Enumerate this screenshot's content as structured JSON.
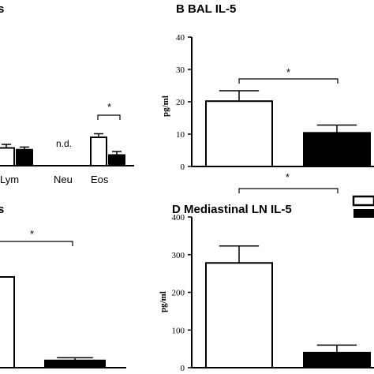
{
  "chart_data": [
    {
      "id": "A",
      "type": "bar",
      "title": "s",
      "categories": [
        "Lym",
        "Neu",
        "Eos"
      ],
      "series": [
        {
          "values": [
            10,
            null,
            16
          ],
          "errors": [
            2,
            null,
            2
          ],
          "color": "#ffffff"
        },
        {
          "values": [
            9,
            null,
            6
          ],
          "errors": [
            1.5,
            null,
            2
          ],
          "color": "#000000"
        }
      ],
      "annotations": [
        {
          "category": "Neu",
          "text": "n.d."
        },
        {
          "category": "Eos",
          "text": "*"
        }
      ]
    },
    {
      "id": "B",
      "type": "bar",
      "title": "B  BAL IL-5",
      "ylabel": "pg/ml",
      "ylim": [
        0,
        40
      ],
      "yticks": [
        0,
        10,
        20,
        30,
        40
      ],
      "values": [
        20.2,
        10.4
      ],
      "errors": [
        3.2,
        2.4
      ],
      "colors": [
        "#ffffff",
        "#000000"
      ],
      "significance": "*"
    },
    {
      "id": "C",
      "type": "bar",
      "title": "s",
      "values": [
        100,
        8
      ],
      "errors": [
        null,
        3
      ],
      "colors": [
        "#ffffff",
        "#000000"
      ],
      "significance": "*"
    },
    {
      "id": "D",
      "type": "bar",
      "title": "D   Mediastinal LN IL-5",
      "ylabel": "pg/ml",
      "ylim": [
        0,
        400
      ],
      "yticks": [
        0,
        100,
        200,
        300,
        400
      ],
      "values": [
        278,
        40
      ],
      "errors": [
        45,
        20
      ],
      "colors": [
        "#ffffff",
        "#000000"
      ],
      "significance": "*"
    }
  ],
  "legend": {
    "swatches": [
      "#ffffff",
      "#000000"
    ]
  }
}
